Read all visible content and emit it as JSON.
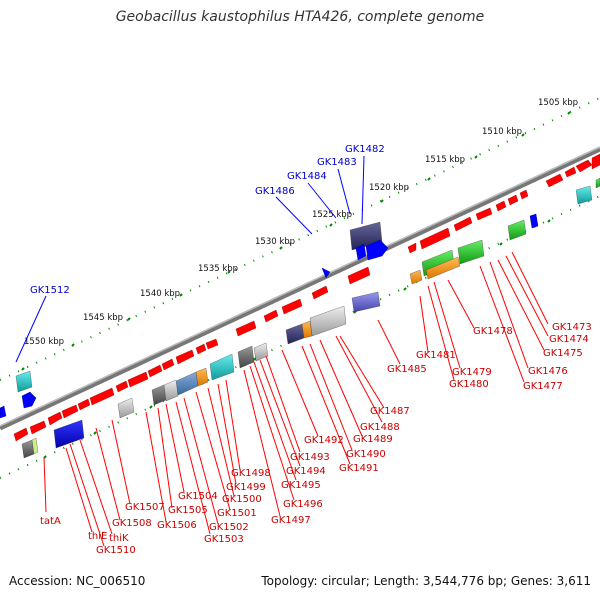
{
  "title": "Geobacillus kaustophilus HTA426, complete genome",
  "footer": {
    "accession": "Accession: NC_006510",
    "summary": "Topology: circular; Length: 3,544,776 bp; Genes: 3,611"
  },
  "scale_labels": [
    "1505 kbp",
    "1510 kbp",
    "1515 kbp",
    "1520 kbp",
    "1525 kbp",
    "1530 kbp",
    "1535 kbp",
    "1540 kbp",
    "1545 kbp",
    "1550 kbp"
  ],
  "gene_labels_top": [
    "GK1482",
    "GK1483",
    "GK1484",
    "GK1486",
    "GK1512"
  ],
  "gene_labels_bottom": [
    "GK1473",
    "GK1474",
    "GK1475",
    "GK1476",
    "GK1477",
    "GK1478",
    "GK1479",
    "GK1480",
    "GK1481",
    "GK1485",
    "GK1487",
    "GK1488",
    "GK1489",
    "GK1490",
    "GK1491",
    "GK1492",
    "GK1493",
    "GK1494",
    "GK1495",
    "GK1496",
    "GK1497",
    "GK1498",
    "GK1499",
    "GK1500",
    "GK1501",
    "GK1502",
    "GK1503",
    "GK1504",
    "GK1505",
    "GK1506",
    "GK1507",
    "GK1508",
    "GK1510",
    "thiK",
    "thiE",
    "tatA"
  ],
  "colors": {
    "forward_gene": "#ff0000",
    "backbone": "#888888",
    "scale_ticks": "#008800",
    "top_label": "#0000cc",
    "bottom_label": "#cc0000"
  }
}
